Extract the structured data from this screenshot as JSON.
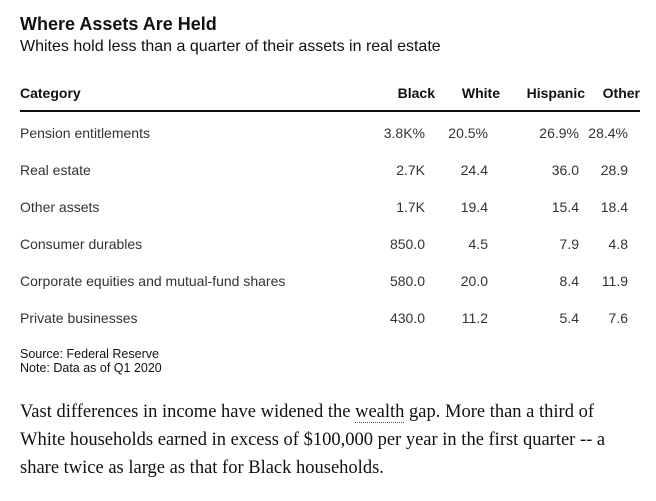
{
  "chart_data": {
    "type": "table",
    "title": "Where Assets Are Held",
    "subtitle": "Whites hold less than a quarter of their assets in real estate",
    "columns": [
      "Category",
      "Black",
      "White",
      "Hispanic",
      "Other"
    ],
    "rows": [
      {
        "category": "Pension entitlements",
        "values": [
          "3.8K%",
          "20.5%",
          "26.9%",
          "28.4%"
        ]
      },
      {
        "category": "Real estate",
        "values": [
          "2.7K",
          "24.4",
          "36.0",
          "28.9"
        ]
      },
      {
        "category": "Other assets",
        "values": [
          "1.7K",
          "19.4",
          "15.4",
          "18.4"
        ]
      },
      {
        "category": "Consumer durables",
        "values": [
          "850.0",
          "4.5",
          "7.9",
          "4.8"
        ]
      },
      {
        "category": "Corporate equities and mutual-fund shares",
        "values": [
          "580.0",
          "20.0",
          "8.4",
          "11.9"
        ]
      },
      {
        "category": "Private businesses",
        "values": [
          "430.0",
          "11.2",
          "5.4",
          "7.6"
        ]
      }
    ],
    "source": "Source: Federal Reserve",
    "note": "Note: Data as of Q1 2020"
  },
  "article": {
    "text_before_link": "Vast differences in income have widened the ",
    "link_text": "wealth",
    "text_after_link": " gap. More than a third of White households earned in excess of $100,000 per year in the first quarter -- a share twice as large as that for Black households."
  }
}
